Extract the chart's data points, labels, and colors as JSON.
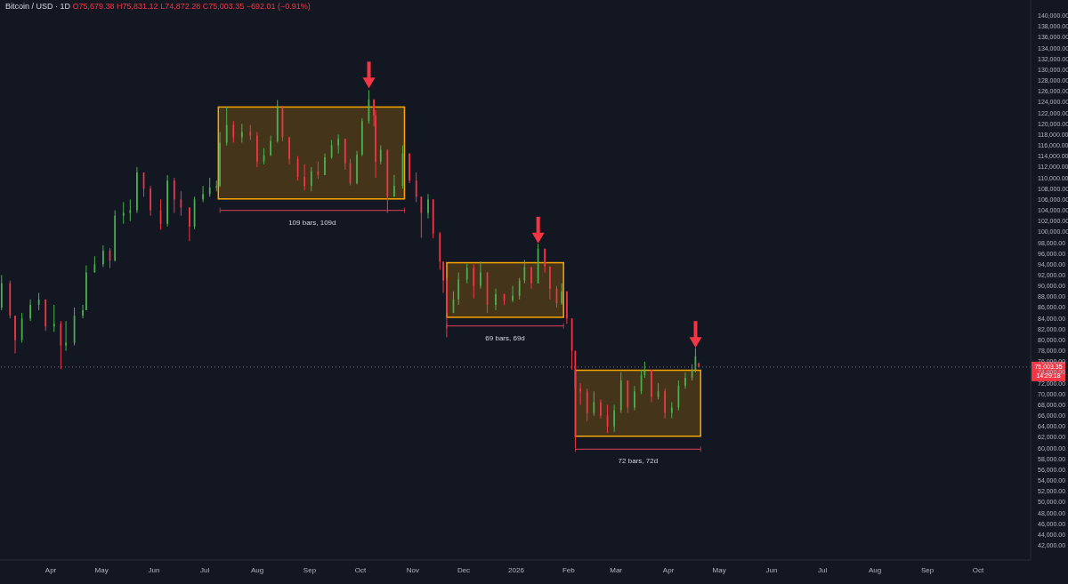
{
  "chart_data": {
    "type": "candlestick",
    "title": "Bitcoin / USD · 1D",
    "subtitle": "O75,679.38 H75,831.12 L74,872.28 C75,003.35 −692.01 (−0.91%)",
    "x": [
      "2025-03-03",
      "2025-03-08",
      "2025-03-11",
      "2025-03-15",
      "2025-03-20",
      "2025-03-25",
      "2025-03-29",
      "2025-04-03",
      "2025-04-07",
      "2025-04-10",
      "2025-04-15",
      "2025-04-20",
      "2025-04-22",
      "2025-04-27",
      "2025-05-02",
      "2025-05-06",
      "2025-05-09",
      "2025-05-14",
      "2025-05-18",
      "2025-05-22",
      "2025-05-26",
      "2025-05-30",
      "2025-06-05",
      "2025-06-09",
      "2025-06-13",
      "2025-06-17",
      "2025-06-22",
      "2025-06-25",
      "2025-06-30",
      "2025-07-04",
      "2025-07-08",
      "2025-07-10",
      "2025-07-14",
      "2025-07-18",
      "2025-07-23",
      "2025-07-28",
      "2025-08-01",
      "2025-08-05",
      "2025-08-09",
      "2025-08-13",
      "2025-08-16",
      "2025-08-20",
      "2025-08-25",
      "2025-08-29",
      "2025-09-02",
      "2025-09-06",
      "2025-09-10",
      "2025-09-14",
      "2025-09-18",
      "2025-09-22",
      "2025-09-25",
      "2025-09-29",
      "2025-10-02",
      "2025-10-06",
      "2025-10-09",
      "2025-10-10",
      "2025-10-13",
      "2025-10-17",
      "2025-10-21",
      "2025-10-26",
      "2025-10-30",
      "2025-11-03",
      "2025-11-06",
      "2025-11-10",
      "2025-11-13",
      "2025-11-17",
      "2025-11-19",
      "2025-11-21",
      "2025-11-25",
      "2025-11-28",
      "2025-12-03",
      "2025-12-07",
      "2025-12-11",
      "2025-12-15",
      "2025-12-20",
      "2025-12-25",
      "2025-12-30",
      "2026-01-03",
      "2026-01-06",
      "2026-01-10",
      "2026-01-14",
      "2026-01-18",
      "2026-01-21",
      "2026-01-25",
      "2026-01-28",
      "2026-01-31",
      "2026-02-03",
      "2026-02-05",
      "2026-02-08",
      "2026-02-12",
      "2026-02-16",
      "2026-02-20",
      "2026-02-24",
      "2026-02-28",
      "2026-03-04",
      "2026-03-08",
      "2026-03-12",
      "2026-03-16",
      "2026-03-18",
      "2026-03-22",
      "2026-03-26",
      "2026-03-30",
      "2026-04-03",
      "2026-04-07",
      "2026-04-11",
      "2026-04-15",
      "2026-04-17",
      "2026-04-19"
    ],
    "ohlc": [
      [
        86000,
        92000,
        85500,
        90500
      ],
      [
        90500,
        91000,
        84000,
        84500
      ],
      [
        84500,
        84500,
        77500,
        80000
      ],
      [
        80000,
        85000,
        79500,
        84000
      ],
      [
        84000,
        87500,
        83500,
        86500
      ],
      [
        86500,
        88700,
        85500,
        87500
      ],
      [
        87500,
        87500,
        81700,
        82500
      ],
      [
        82500,
        86500,
        81500,
        83000
      ],
      [
        83000,
        83500,
        74600,
        79000
      ],
      [
        79000,
        83500,
        78000,
        79500
      ],
      [
        79500,
        86000,
        79000,
        84500
      ],
      [
        84500,
        86500,
        84000,
        85500
      ],
      [
        85500,
        93800,
        85500,
        92500
      ],
      [
        92500,
        95500,
        92500,
        94000
      ],
      [
        94000,
        97500,
        93500,
        96500
      ],
      [
        96500,
        97000,
        93300,
        94700
      ],
      [
        94700,
        104000,
        94500,
        103000
      ],
      [
        103000,
        105500,
        101500,
        103500
      ],
      [
        103500,
        106000,
        102000,
        104000
      ],
      [
        104000,
        112000,
        103500,
        111000
      ],
      [
        111000,
        111000,
        106500,
        108000
      ],
      [
        108000,
        108500,
        103000,
        104000
      ],
      [
        104000,
        106000,
        100400,
        101500
      ],
      [
        101500,
        110500,
        101000,
        109500
      ],
      [
        109500,
        110000,
        103500,
        106000
      ],
      [
        106000,
        107500,
        103000,
        104500
      ],
      [
        104500,
        104500,
        98300,
        101000
      ],
      [
        101000,
        106500,
        100500,
        106000
      ],
      [
        106000,
        108500,
        105500,
        107000
      ],
      [
        107000,
        110000,
        106500,
        108200
      ],
      [
        108200,
        109500,
        107500,
        108500
      ],
      [
        108500,
        118500,
        108300,
        116500
      ],
      [
        116500,
        123100,
        116000,
        119800
      ],
      [
        119800,
        120500,
        116500,
        117500
      ],
      [
        117500,
        120000,
        116500,
        118500
      ],
      [
        118500,
        119800,
        117000,
        117800
      ],
      [
        117800,
        118500,
        112000,
        113000
      ],
      [
        113000,
        115500,
        112500,
        114200
      ],
      [
        114200,
        117800,
        114000,
        116800
      ],
      [
        116800,
        124400,
        116500,
        123300
      ],
      [
        123300,
        123300,
        116800,
        117500
      ],
      [
        117500,
        117500,
        112500,
        113500
      ],
      [
        113500,
        114000,
        109500,
        110200
      ],
      [
        110200,
        112500,
        107700,
        108500
      ],
      [
        108500,
        112000,
        107500,
        111200
      ],
      [
        111200,
        113000,
        109800,
        110500
      ],
      [
        110500,
        114500,
        110500,
        113800
      ],
      [
        113800,
        117000,
        113500,
        116000
      ],
      [
        116000,
        118000,
        114500,
        117200
      ],
      [
        117200,
        117200,
        111500,
        112700
      ],
      [
        112700,
        113500,
        108600,
        109000
      ],
      [
        109000,
        115000,
        108800,
        114300
      ],
      [
        114300,
        121000,
        114000,
        120500
      ],
      [
        120500,
        126200,
        120000,
        124500
      ],
      [
        124500,
        124500,
        119500,
        121500
      ],
      [
        121500,
        122500,
        110000,
        113000
      ],
      [
        113000,
        116000,
        112500,
        115200
      ],
      [
        115200,
        115200,
        103500,
        106500
      ],
      [
        106500,
        110500,
        106500,
        108500
      ],
      [
        108500,
        116000,
        108000,
        114500
      ],
      [
        114500,
        114500,
        109000,
        109500
      ],
      [
        109500,
        111000,
        105500,
        106500
      ],
      [
        106500,
        106500,
        98900,
        103500
      ],
      [
        103500,
        107000,
        102500,
        106000
      ],
      [
        106000,
        106000,
        98800,
        99700
      ],
      [
        99700,
        100000,
        93000,
        94500
      ],
      [
        94500,
        94500,
        88700,
        91000
      ],
      [
        91000,
        91500,
        80500,
        85000
      ],
      [
        85000,
        89000,
        85000,
        87500
      ],
      [
        87500,
        92500,
        86500,
        91200
      ],
      [
        91200,
        94100,
        90500,
        93300
      ],
      [
        93300,
        94000,
        87700,
        90000
      ],
      [
        90000,
        94500,
        89500,
        92500
      ],
      [
        92500,
        92500,
        85000,
        86500
      ],
      [
        86500,
        89500,
        85500,
        88500
      ],
      [
        88500,
        88500,
        86500,
        87300
      ],
      [
        87300,
        90000,
        87000,
        88200
      ],
      [
        88200,
        91500,
        87500,
        91000
      ],
      [
        91000,
        94800,
        90500,
        93500
      ],
      [
        93500,
        93500,
        89500,
        90500
      ],
      [
        90500,
        97800,
        90500,
        96900
      ],
      [
        96900,
        96900,
        92500,
        93600
      ],
      [
        93600,
        93600,
        87500,
        89500
      ],
      [
        89500,
        90000,
        86000,
        86800
      ],
      [
        86800,
        90500,
        86500,
        89000
      ],
      [
        89000,
        89000,
        83000,
        84000
      ],
      [
        84000,
        84000,
        74500,
        78000
      ],
      [
        78000,
        78000,
        60000,
        71000
      ],
      [
        71000,
        72000,
        68000,
        70500
      ],
      [
        70500,
        71000,
        65000,
        66500
      ],
      [
        66500,
        70500,
        66000,
        68500
      ],
      [
        68500,
        69000,
        65500,
        66000
      ],
      [
        66000,
        68000,
        62800,
        64000
      ],
      [
        64000,
        68000,
        63000,
        67000
      ],
      [
        67000,
        74000,
        66500,
        72500
      ],
      [
        72500,
        72500,
        66500,
        67500
      ],
      [
        67500,
        71500,
        67000,
        70500
      ],
      [
        70500,
        74500,
        70000,
        73500
      ],
      [
        73500,
        76000,
        73000,
        74500
      ],
      [
        74500,
        74500,
        68500,
        69500
      ],
      [
        69500,
        72000,
        69000,
        70500
      ],
      [
        70500,
        71000,
        65500,
        66500
      ],
      [
        66500,
        68500,
        65500,
        67500
      ],
      [
        67500,
        72500,
        67000,
        71500
      ],
      [
        71500,
        74000,
        71000,
        73000
      ],
      [
        73000,
        75500,
        72500,
        74500
      ],
      [
        74500,
        78500,
        74000,
        77000
      ],
      [
        75679.38,
        75831.12,
        74872.28,
        75003.35
      ]
    ],
    "xlim": [
      "2025-03-02",
      "2026-11-01"
    ],
    "xticks": [
      {
        "value": "2025-04-01",
        "label": "Apr"
      },
      {
        "value": "2025-05-01",
        "label": "May"
      },
      {
        "value": "2025-06-01",
        "label": "Jun"
      },
      {
        "value": "2025-07-01",
        "label": "Jul"
      },
      {
        "value": "2025-08-01",
        "label": "Aug"
      },
      {
        "value": "2025-09-01",
        "label": "Sep"
      },
      {
        "value": "2025-10-01",
        "label": "Oct"
      },
      {
        "value": "2025-11-01",
        "label": "Nov"
      },
      {
        "value": "2025-12-01",
        "label": "Dec"
      },
      {
        "value": "2026-01-01",
        "label": "2026"
      },
      {
        "value": "2026-02-01",
        "label": "Feb"
      },
      {
        "value": "2026-03-01",
        "label": "Mar"
      },
      {
        "value": "2026-04-01",
        "label": "Apr"
      },
      {
        "value": "2026-05-01",
        "label": "May"
      },
      {
        "value": "2026-06-01",
        "label": "Jun"
      },
      {
        "value": "2026-07-01",
        "label": "Jul"
      },
      {
        "value": "2026-08-01",
        "label": "Aug"
      },
      {
        "value": "2026-09-01",
        "label": "Sep"
      },
      {
        "value": "2026-10-01",
        "label": "Oct"
      }
    ],
    "ylim": [
      39300,
      142900
    ],
    "yticks": [
      {
        "value": 42000,
        "label": "42,000.00"
      },
      {
        "value": 44000,
        "label": "44,000.00"
      },
      {
        "value": 46000,
        "label": "46,000.00"
      },
      {
        "value": 48000,
        "label": "48,000.00"
      },
      {
        "value": 50000,
        "label": "50,000.00"
      },
      {
        "value": 52000,
        "label": "52,000.00"
      },
      {
        "value": 54000,
        "label": "54,000.00"
      },
      {
        "value": 56000,
        "label": "56,000.00"
      },
      {
        "value": 58000,
        "label": "58,000.00"
      },
      {
        "value": 60000,
        "label": "60,000.00"
      },
      {
        "value": 62000,
        "label": "62,000.00"
      },
      {
        "value": 64000,
        "label": "64,000.00"
      },
      {
        "value": 66000,
        "label": "66,000.00"
      },
      {
        "value": 68000,
        "label": "68,000.00"
      },
      {
        "value": 70000,
        "label": "70,000.00"
      },
      {
        "value": 72000,
        "label": "72,000.00"
      },
      {
        "value": 74000,
        "label": "74,000.00"
      },
      {
        "value": 76000,
        "label": "76,000.00"
      },
      {
        "value": 78000,
        "label": "78,000.00"
      },
      {
        "value": 80000,
        "label": "80,000.00"
      },
      {
        "value": 82000,
        "label": "82,000.00"
      },
      {
        "value": 84000,
        "label": "84,000.00"
      },
      {
        "value": 86000,
        "label": "86,000.00"
      },
      {
        "value": 88000,
        "label": "88,000.00"
      },
      {
        "value": 90000,
        "label": "90,000.00"
      },
      {
        "value": 92000,
        "label": "92,000.00"
      },
      {
        "value": 94000,
        "label": "94,000.00"
      },
      {
        "value": 96000,
        "label": "96,000.00"
      },
      {
        "value": 98000,
        "label": "98,000.00"
      },
      {
        "value": 100000,
        "label": "100,000.00"
      },
      {
        "value": 102000,
        "label": "102,000.00"
      },
      {
        "value": 104000,
        "label": "104,000.00"
      },
      {
        "value": 106000,
        "label": "106,000.00"
      },
      {
        "value": 108000,
        "label": "108,000.00"
      },
      {
        "value": 110000,
        "label": "110,000.00"
      },
      {
        "value": 112000,
        "label": "112,000.00"
      },
      {
        "value": 114000,
        "label": "114,000.00"
      },
      {
        "value": 116000,
        "label": "116,000.00"
      },
      {
        "value": 118000,
        "label": "118,000.00"
      },
      {
        "value": 120000,
        "label": "120,000.00"
      },
      {
        "value": 122000,
        "label": "122,000.00"
      },
      {
        "value": 124000,
        "label": "124,000.00"
      },
      {
        "value": 126000,
        "label": "126,000.00"
      },
      {
        "value": 128000,
        "label": "128,000.00"
      },
      {
        "value": 130000,
        "label": "130,000.00"
      },
      {
        "value": 132000,
        "label": "132,000.00"
      },
      {
        "value": 134000,
        "label": "134,000.00"
      },
      {
        "value": 136000,
        "label": "136,000.00"
      },
      {
        "value": 138000,
        "label": "138,000.00"
      },
      {
        "value": 140000,
        "label": "140,000.00"
      }
    ],
    "ref_lines": [
      {
        "axis": "y",
        "value": 75003.35,
        "label": "75,003.35",
        "color": "#f23645",
        "line_style": "dotted"
      }
    ],
    "annotations": [
      "109 bars, 109d",
      "69 bars, 69d",
      "72 bars, 72d",
      "14:29:18"
    ]
  }
}
